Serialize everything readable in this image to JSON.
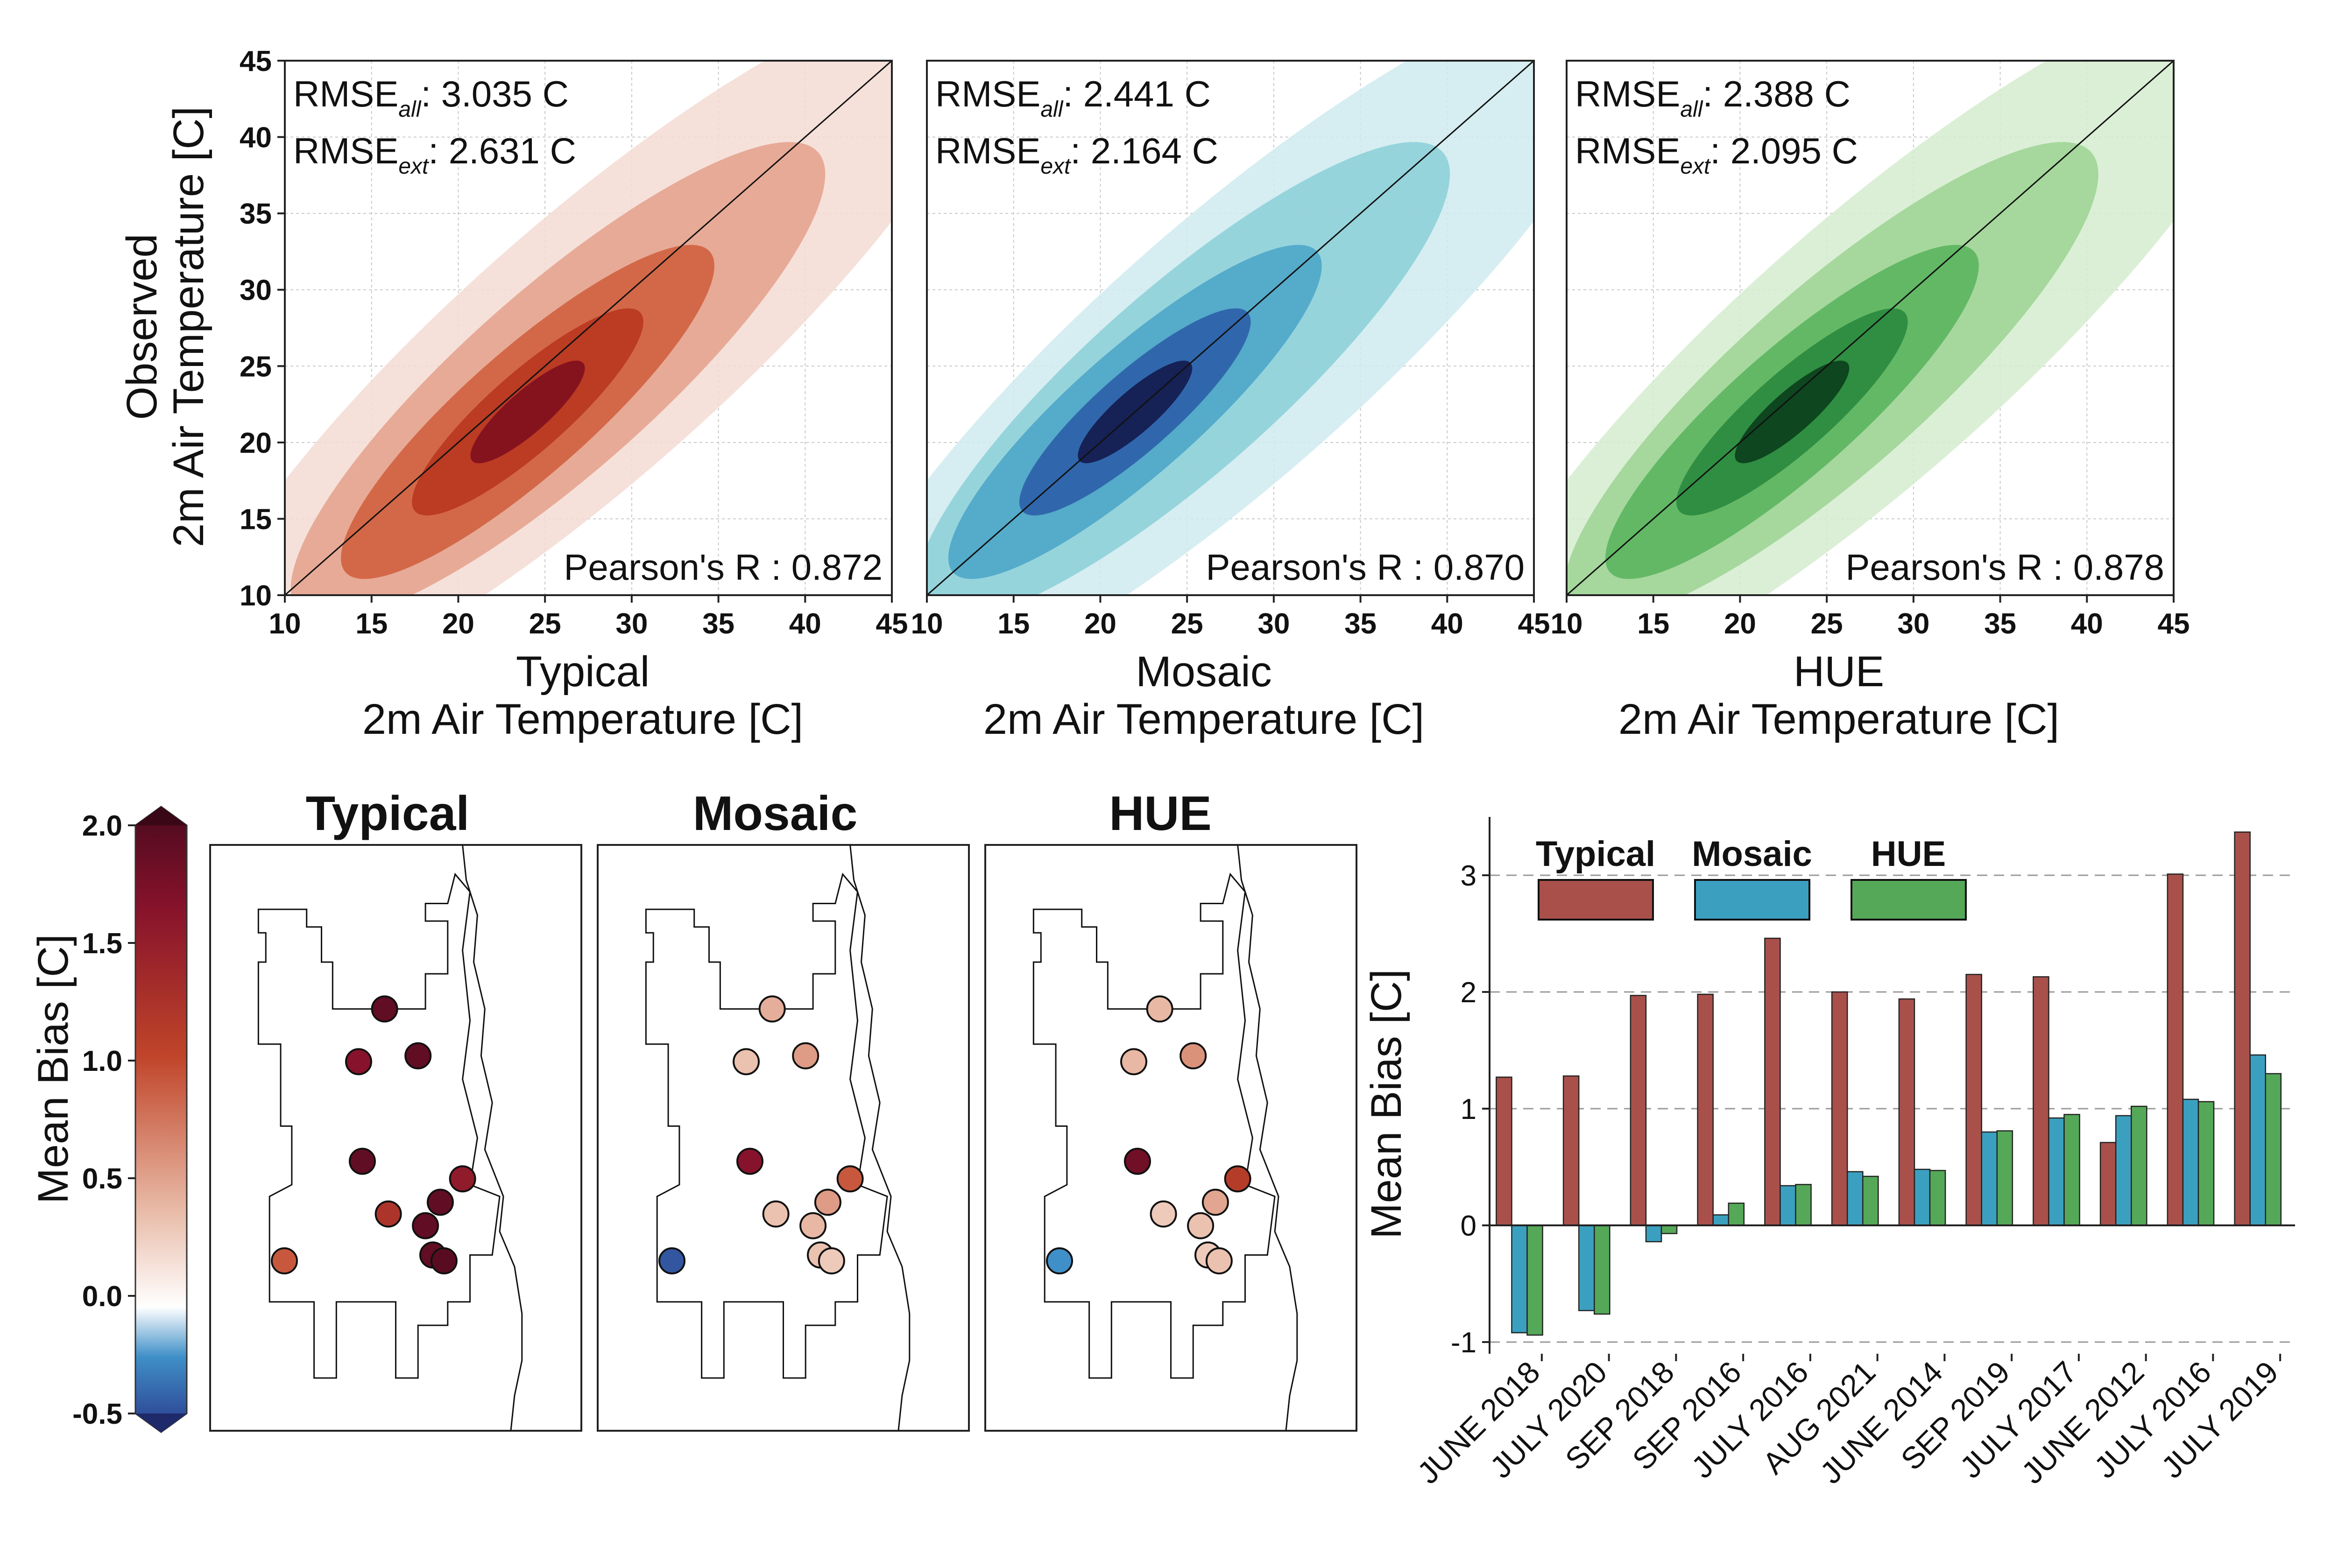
{
  "chart_data": [
    {
      "type": "density",
      "panel": "typical-scatter",
      "xlabel_line1": "Typical",
      "xlabel_line2": "2m Air Temperature [C]",
      "ylabel_line1": "Observed",
      "ylabel_line2": "2m Air Temperature [C]",
      "xlim": [
        10,
        45
      ],
      "ylim": [
        10,
        45
      ],
      "xticks": [
        "10",
        "15",
        "20",
        "25",
        "30",
        "35",
        "40",
        "45"
      ],
      "yticks": [
        "10",
        "15",
        "20",
        "25",
        "30",
        "35",
        "40",
        "45"
      ],
      "rmse_all_label": "RMSE",
      "rmse_all_sub": "all",
      "rmse_all_value": ": 3.035 C",
      "rmse_ext_label": "RMSE",
      "rmse_ext_sub": "ext",
      "rmse_ext_value": ": 2.631 C",
      "pearson": "Pearson's R : 0.872",
      "colors": [
        "#f3dcd3",
        "#e6a48f",
        "#d0603f",
        "#b8361f",
        "#7f0f1e"
      ],
      "density_center": [
        24,
        22
      ],
      "grid": true
    },
    {
      "type": "density",
      "panel": "mosaic-scatter",
      "xlabel_line1": "Mosaic",
      "xlabel_line2": "2m Air Temperature [C]",
      "xlim": [
        10,
        45
      ],
      "ylim": [
        10,
        45
      ],
      "xticks": [
        "10",
        "15",
        "20",
        "25",
        "30",
        "35",
        "40",
        "45"
      ],
      "rmse_all_label": "RMSE",
      "rmse_all_sub": "all",
      "rmse_all_value": ": 2.441 C",
      "rmse_ext_label": "RMSE",
      "rmse_ext_sub": "ext",
      "rmse_ext_value": ": 2.164 C",
      "pearson": "Pearson's R : 0.870",
      "colors": [
        "#cfebee",
        "#8fd0d9",
        "#4ea6c8",
        "#2c5fa8",
        "#141a4d"
      ],
      "density_center": [
        22,
        22
      ],
      "grid": true
    },
    {
      "type": "density",
      "panel": "hue-scatter",
      "xlabel_line1": "HUE",
      "xlabel_line2": "2m Air Temperature [C]",
      "xlim": [
        10,
        45
      ],
      "ylim": [
        10,
        45
      ],
      "xticks": [
        "10",
        "15",
        "20",
        "25",
        "30",
        "35",
        "40",
        "45"
      ],
      "rmse_all_label": "RMSE",
      "rmse_all_sub": "all",
      "rmse_all_value": ": 2.388 C",
      "rmse_ext_label": "RMSE",
      "rmse_ext_sub": "ext",
      "rmse_ext_value": ": 2.095 C",
      "pearson": "Pearson's R : 0.878",
      "colors": [
        "#d5eccf",
        "#a0d597",
        "#5cb560",
        "#2a8a3e",
        "#0a3e1c"
      ],
      "density_center": [
        23,
        22
      ],
      "grid": true
    },
    {
      "type": "map",
      "panel": "station-bias-maps",
      "colorbar_label": "Mean Bias [C]",
      "colorbar_range": [
        -0.5,
        2.0
      ],
      "colorbar_ticks": [
        "2.0",
        "1.5",
        "1.0",
        "0.5",
        "0.0",
        "-0.5"
      ],
      "colorbar_colors": [
        "#2b3a8c",
        "#3f8fc8",
        "#ffffff",
        "#e8b8a4",
        "#c0452a",
        "#86122b",
        "#4a0a1e"
      ],
      "maps": [
        {
          "title": "Typical",
          "station_bias": [
            1.85,
            1.85,
            1.6,
            1.85,
            1.5,
            1.85,
            1.2,
            1.85,
            1.85,
            1.9,
            0.9
          ]
        },
        {
          "title": "Mosaic",
          "station_bias": [
            0.45,
            0.55,
            0.35,
            1.6,
            0.9,
            0.55,
            0.35,
            0.4,
            0.35,
            0.3,
            -0.4
          ]
        },
        {
          "title": "HUE",
          "station_bias": [
            0.4,
            0.6,
            0.4,
            1.75,
            1.1,
            0.5,
            0.3,
            0.35,
            0.3,
            0.35,
            -0.2
          ]
        }
      ]
    },
    {
      "type": "bar",
      "panel": "monthly-mean-bias",
      "ylabel": "Mean Bias [C]",
      "ylim": [
        -1.1,
        3.5
      ],
      "yticks": [
        "-1",
        "0",
        "1",
        "2",
        "3"
      ],
      "categories": [
        "JUNE 2018",
        "JULY 2020",
        "SEP 2018",
        "SEP 2016",
        "JULY 2016",
        "AUG 2021",
        "JUNE 2014",
        "SEP 2019",
        "JULY 2017",
        "JUNE 2012",
        "JULY 2016",
        "JULY 2019"
      ],
      "series": [
        {
          "name": "Typical",
          "color": "#a9504b",
          "values": [
            1.27,
            1.28,
            1.97,
            1.98,
            2.46,
            2.0,
            1.94,
            2.15,
            2.13,
            0.71,
            3.01,
            3.37
          ]
        },
        {
          "name": "Mosaic",
          "color": "#3ba0c0",
          "values": [
            -0.92,
            -0.73,
            -0.14,
            0.09,
            0.34,
            0.46,
            0.48,
            0.8,
            0.92,
            0.94,
            1.08,
            1.46
          ]
        },
        {
          "name": "HUE",
          "color": "#55a858",
          "values": [
            -0.94,
            -0.76,
            -0.07,
            0.19,
            0.35,
            0.42,
            0.47,
            0.81,
            0.95,
            1.02,
            1.06,
            1.3
          ]
        }
      ],
      "grid": "dashed horizontal at integers",
      "legend": "top-left"
    }
  ]
}
